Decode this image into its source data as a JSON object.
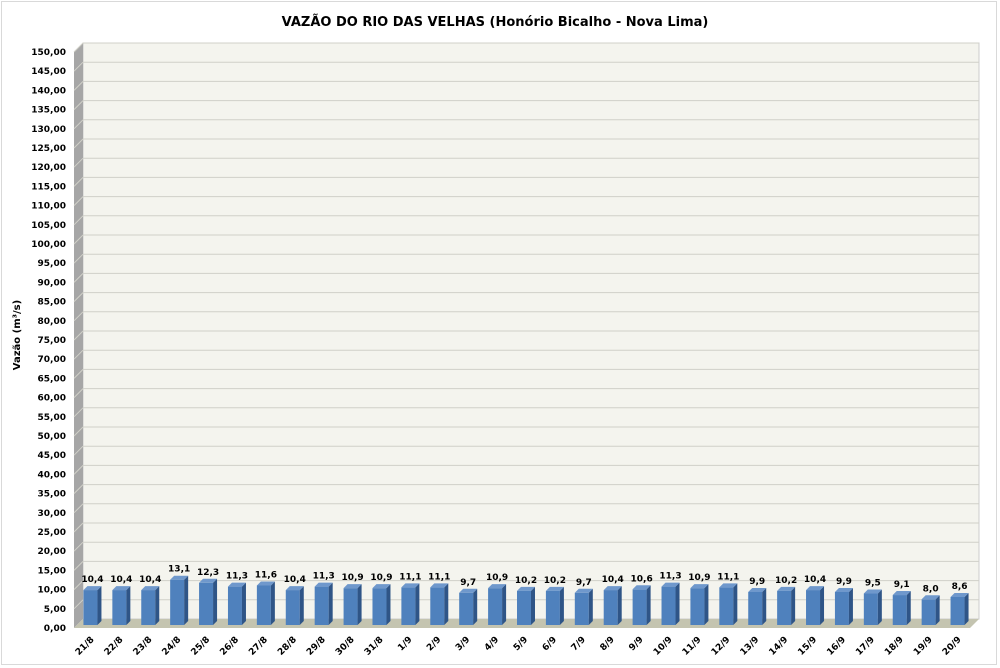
{
  "chart_data": {
    "type": "bar",
    "title": "VAZÃO DO RIO DAS VELHAS (Honório Bicalho - Nova Lima)",
    "xlabel": "",
    "ylabel": "Vazão (m³/s)",
    "ylim": [
      0,
      150
    ],
    "ytick_step": 5,
    "grid": true,
    "categories": [
      "21/8",
      "22/8",
      "23/8",
      "24/8",
      "25/8",
      "26/8",
      "27/8",
      "28/8",
      "29/8",
      "30/8",
      "31/8",
      "1/9",
      "2/9",
      "3/9",
      "4/9",
      "5/9",
      "6/9",
      "7/9",
      "8/9",
      "9/9",
      "10/9",
      "11/9",
      "12/9",
      "13/9",
      "14/9",
      "15/9",
      "16/9",
      "17/9",
      "18/9",
      "19/9",
      "20/9"
    ],
    "values": [
      10.4,
      10.4,
      10.4,
      13.1,
      12.3,
      11.3,
      11.6,
      10.4,
      11.3,
      10.9,
      10.9,
      11.1,
      11.1,
      9.7,
      10.9,
      10.2,
      10.2,
      9.7,
      10.4,
      10.6,
      11.3,
      10.9,
      11.1,
      9.9,
      10.2,
      10.4,
      9.9,
      9.5,
      9.1,
      8.0,
      8.6
    ],
    "data_labels": [
      "10,4",
      "10,4",
      "10,4",
      "13,1",
      "12,3",
      "11,3",
      "11,6",
      "10,4",
      "11,3",
      "10,9",
      "10,9",
      "11,1",
      "11,1",
      "9,7",
      "10,9",
      "10,2",
      "10,2",
      "9,7",
      "10,4",
      "10,6",
      "11,3",
      "10,9",
      "11,1",
      "9,9",
      "10,2",
      "10,4",
      "9,9",
      "9,5",
      "9,1",
      "8,0",
      "8,6"
    ],
    "colors": {
      "bar": "#4f81bd",
      "bar_side": "#2f5587",
      "bar_top": "#6f98cc",
      "wall": "#f4f4ee",
      "floor": "#c4c4b0",
      "left_wall": "#a6a6a6",
      "grid": "#d0d0c8"
    }
  }
}
